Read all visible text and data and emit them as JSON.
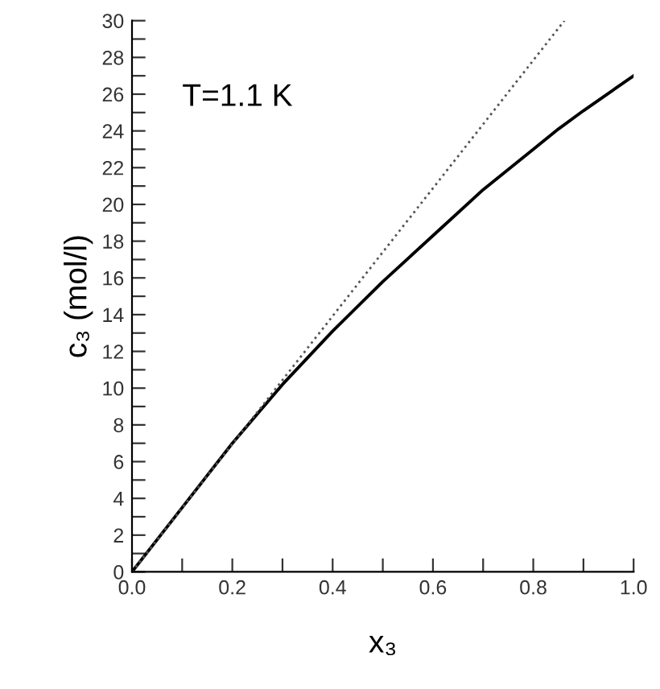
{
  "chart_data": {
    "type": "line",
    "xlabel": "x₃",
    "ylabel": "c₃ (mol/l)",
    "annotations": [
      "T=1.1 K"
    ],
    "xlim": [
      0,
      1.0
    ],
    "ylim": [
      0,
      30
    ],
    "xticks": [
      {
        "value": 0,
        "label": "0.0"
      },
      {
        "value": 0.1,
        "label": null
      },
      {
        "value": 0.2,
        "label": "0.2"
      },
      {
        "value": 0.3,
        "label": null
      },
      {
        "value": 0.4,
        "label": "0.4"
      },
      {
        "value": 0.5,
        "label": null
      },
      {
        "value": 0.6,
        "label": "0.6"
      },
      {
        "value": 0.7,
        "label": null
      },
      {
        "value": 0.8,
        "label": "0.8"
      },
      {
        "value": 0.9,
        "label": null
      },
      {
        "value": 1.0,
        "label": "1.0"
      }
    ],
    "yticks": [
      0,
      {
        "value": 1,
        "label": null
      },
      2,
      {
        "value": 3,
        "label": null
      },
      4,
      {
        "value": 5,
        "label": null
      },
      6,
      {
        "value": 7,
        "label": null
      },
      8,
      {
        "value": 9,
        "label": null
      },
      10,
      {
        "value": 11,
        "label": null
      },
      12,
      {
        "value": 13,
        "label": null
      },
      14,
      {
        "value": 15,
        "label": null
      },
      16,
      {
        "value": 17,
        "label": null
      },
      18,
      {
        "value": 19,
        "label": null
      },
      20,
      {
        "value": 21,
        "label": null
      },
      22,
      {
        "value": 23,
        "label": null
      },
      24,
      {
        "value": 25,
        "label": null
      },
      26,
      {
        "value": 27,
        "label": null
      },
      28,
      {
        "value": 29,
        "label": null
      },
      30
    ],
    "grid": false,
    "legend": false,
    "series": [
      {
        "color": "#000000",
        "line_style": "solid",
        "x": [
          0,
          0.1,
          0.2,
          0.3,
          0.4,
          0.5,
          0.6,
          0.7,
          0.8,
          0.85,
          0.9,
          1.0
        ],
        "values": [
          0,
          3.5,
          7.0,
          10.2,
          13.1,
          15.8,
          18.3,
          20.8,
          23.0,
          24.1,
          25.1,
          27.0
        ]
      },
      {
        "color": "#555555",
        "line_style": "dotted",
        "x": [
          0,
          0.862
        ],
        "values": [
          0,
          30
        ]
      }
    ]
  }
}
